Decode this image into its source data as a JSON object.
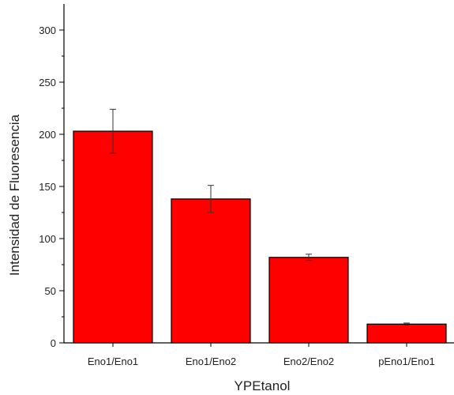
{
  "chart_data": {
    "type": "bar",
    "title": "",
    "xlabel": "YPEtanol",
    "ylabel": "Intensidad de Fluoresencia",
    "categories": [
      "Eno1/Eno1",
      "Eno1/Eno2",
      "Eno2/Eno2",
      "pEno1/Eno1"
    ],
    "values": [
      203,
      138,
      82,
      18
    ],
    "errors": [
      21,
      13,
      3,
      1
    ],
    "ylim": [
      0,
      325
    ],
    "yticks": [
      0,
      50,
      100,
      150,
      200,
      250,
      300
    ],
    "grid": false,
    "legend": "none",
    "bar_color": "#ff0000",
    "edge_color": "#000000"
  }
}
